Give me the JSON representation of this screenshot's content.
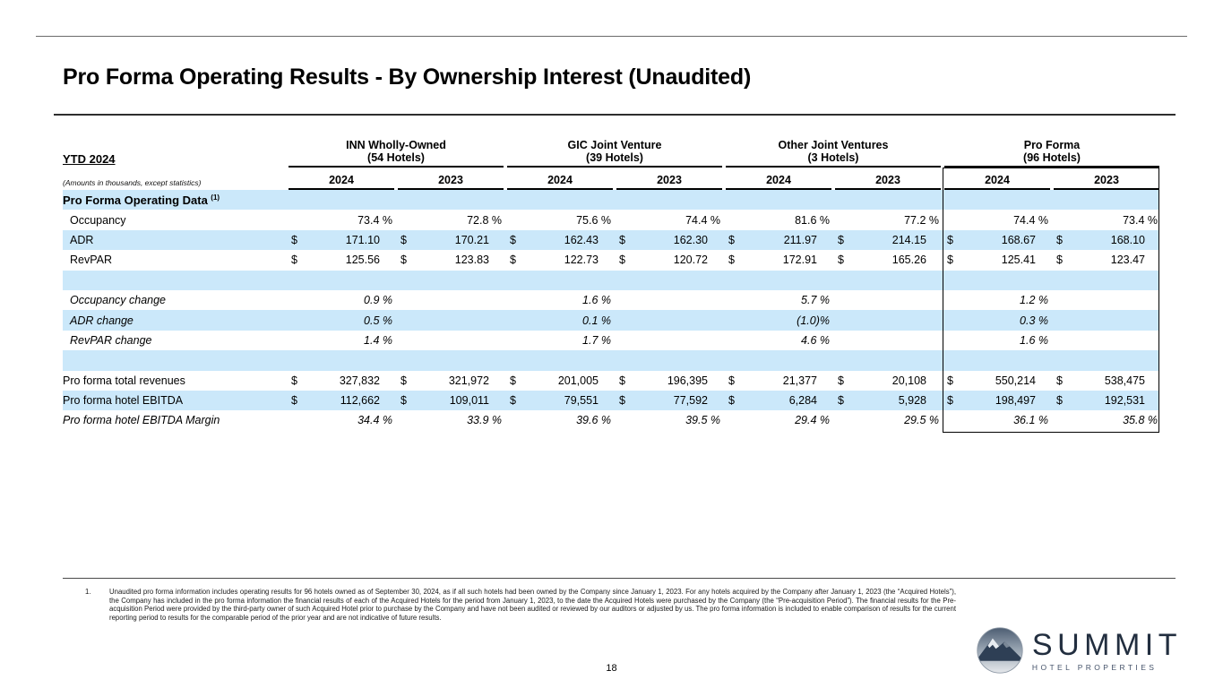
{
  "title": "Pro Forma Operating Results - By Ownership Interest (Unaudited)",
  "colors": {
    "row_blue": "#cbe8fa",
    "logo_navy": "#2e3f55"
  },
  "table": {
    "ytd_label": "YTD 2024",
    "amounts_note": "(Amounts in thousands, except statistics)",
    "dollar": "$",
    "groups": [
      {
        "name": "INN Wholly-Owned",
        "hotels": "(54 Hotels)"
      },
      {
        "name": "GIC Joint Venture",
        "hotels": "(39 Hotels)"
      },
      {
        "name": "Other Joint Ventures",
        "hotels": "(3 Hotels)"
      },
      {
        "name": "Pro Forma",
        "hotels": "(96 Hotels)"
      }
    ],
    "year_headers": [
      "2024",
      "2023",
      "2024",
      "2023",
      "2024",
      "2023",
      "2024",
      "2023"
    ],
    "rows": [
      {
        "type": "section",
        "label": "Pro Forma Operating Data",
        "sup": "(1)",
        "shade": true,
        "cells": []
      },
      {
        "type": "pct",
        "label": "Occupancy",
        "indent": true,
        "shade": false,
        "cells": [
          "73.4 %",
          "72.8 %",
          "75.6 %",
          "74.4 %",
          "81.6 %",
          "77.2 %",
          "74.4 %",
          "73.4 %"
        ]
      },
      {
        "type": "usd",
        "label": "ADR",
        "indent": true,
        "shade": true,
        "cells": [
          "171.10",
          "170.21",
          "162.43",
          "162.30",
          "211.97",
          "214.15",
          "168.67",
          "168.10"
        ]
      },
      {
        "type": "usd",
        "label": "RevPAR",
        "indent": true,
        "shade": false,
        "cells": [
          "125.56",
          "123.83",
          "122.73",
          "120.72",
          "172.91",
          "165.26",
          "125.41",
          "123.47"
        ]
      },
      {
        "type": "blank",
        "label": "",
        "shade": true,
        "cells": []
      },
      {
        "type": "pct",
        "label": "Occupancy change",
        "indent": true,
        "italic": true,
        "shade": false,
        "cells": [
          "0.9 %",
          "",
          "1.6 %",
          "",
          "5.7 %",
          "",
          "1.2 %",
          ""
        ]
      },
      {
        "type": "pct",
        "label": "ADR change",
        "indent": true,
        "italic": true,
        "shade": true,
        "cells": [
          "0.5 %",
          "",
          "0.1 %",
          "",
          "(1.0)%",
          "",
          "0.3 %",
          ""
        ]
      },
      {
        "type": "pct",
        "label": "RevPAR change",
        "indent": true,
        "italic": true,
        "shade": false,
        "cells": [
          "1.4 %",
          "",
          "1.7 %",
          "",
          "4.6 %",
          "",
          "1.6 %",
          ""
        ]
      },
      {
        "type": "blank",
        "label": "",
        "shade": true,
        "cells": []
      },
      {
        "type": "usd",
        "label": "Pro forma total revenues",
        "shade": false,
        "cells": [
          "327,832",
          "321,972",
          "201,005",
          "196,395",
          "21,377",
          "20,108",
          "550,214",
          "538,475"
        ]
      },
      {
        "type": "usd",
        "label": "Pro forma hotel EBITDA",
        "shade": true,
        "cells": [
          "112,662",
          "109,011",
          "79,551",
          "77,592",
          "6,284",
          "5,928",
          "198,497",
          "192,531"
        ]
      },
      {
        "type": "pct",
        "label": "Pro forma hotel EBITDA Margin",
        "italic": true,
        "shade": false,
        "cells": [
          "34.4 %",
          "33.9 %",
          "39.6 %",
          "39.5 %",
          "29.4 %",
          "29.5 %",
          "36.1 %",
          "35.8 %"
        ]
      }
    ]
  },
  "footnote": {
    "number": "1.",
    "text": "Unaudited pro forma information includes operating results for 96 hotels owned as of September 30, 2024, as if all such hotels had been owned by the Company since January 1, 2023. For any hotels acquired by the Company after January 1, 2023 (the “Acquired Hotels”), the Company has included in the pro forma information the financial results of each of the Acquired Hotels for the period from January 1, 2023, to the date the Acquired Hotels were purchased by the Company (the “Pre-acquisition Period”). The financial results for the Pre-acquisition Period were provided by the third-party owner of such Acquired Hotel prior to purchase by the Company and have not been audited or reviewed by our auditors or adjusted by us. The pro forma information is included to enable comparison of results for the current reporting period to results for the comparable period of the prior year and are not indicative of future results."
  },
  "page_number": "18",
  "logo": {
    "wordmark": "SUMMIT",
    "tagline": "HOTEL PROPERTIES"
  }
}
